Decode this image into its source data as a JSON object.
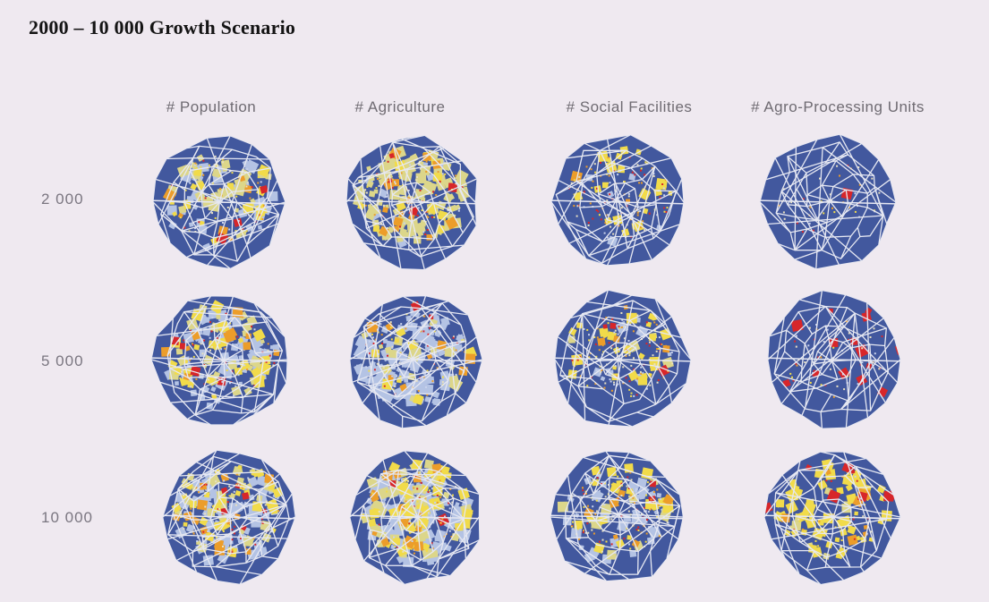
{
  "title": "2000 – 10 000 Growth Scenario",
  "columns": [
    {
      "key": "population",
      "label": "# Population"
    },
    {
      "key": "agriculture",
      "label": "# Agriculture"
    },
    {
      "key": "social",
      "label": "# Social Facilities"
    },
    {
      "key": "agro",
      "label": "# Agro-Processing Units"
    }
  ],
  "rows": [
    {
      "key": "r2000",
      "label": "2 000"
    },
    {
      "key": "r5000",
      "label": "5 000"
    },
    {
      "key": "r10000",
      "label": "10 000"
    }
  ],
  "colors": {
    "background": "#efe9f0",
    "map_base": "#42589e",
    "cell_edge": "#e6e8f2",
    "light_blue": "#b4c3e4",
    "pale_yellow": "#dcd68a",
    "yellow": "#f1db4a",
    "orange": "#ec9d2a",
    "red": "#d7262a"
  }
}
